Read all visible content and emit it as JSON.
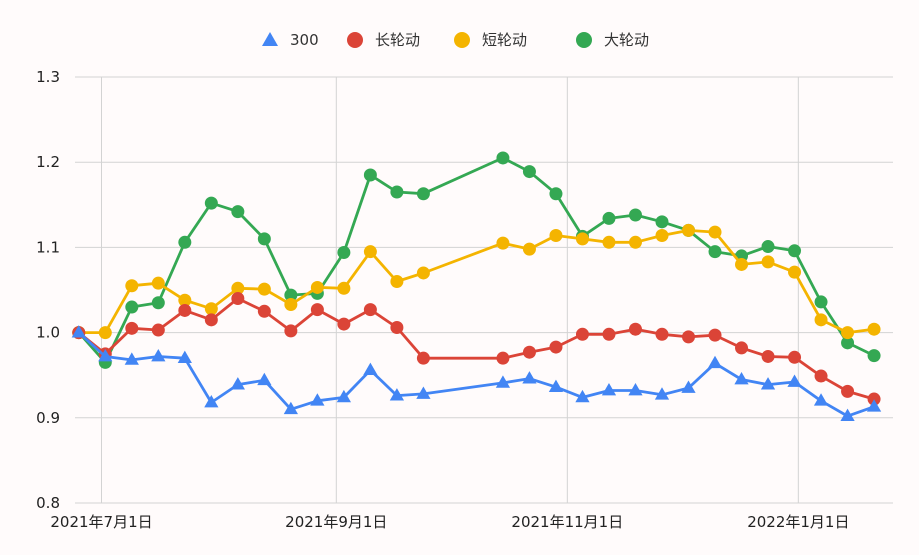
{
  "chart_data": {
    "type": "line",
    "title": "",
    "xlabel": "",
    "ylabel": "",
    "ylim": [
      0.8,
      1.3
    ],
    "y_ticks": [
      "0.8",
      "0.9",
      "1.0",
      "1.1",
      "1.2",
      "1.3"
    ],
    "x_range": [
      "2021-06-24",
      "2022-01-26"
    ],
    "x_ticks": [
      {
        "date": "2021-07-01",
        "label": "2021年7月1日"
      },
      {
        "date": "2021-09-01",
        "label": "2021年9月1日"
      },
      {
        "date": "2021-11-01",
        "label": "2021年11月1日"
      },
      {
        "date": "2022-01-01",
        "label": "2022年1月1日"
      }
    ],
    "grid": true,
    "legend_position": "top",
    "x": [
      "2021-06-25",
      "2021-07-02",
      "2021-07-09",
      "2021-07-16",
      "2021-07-23",
      "2021-07-30",
      "2021-08-06",
      "2021-08-13",
      "2021-08-20",
      "2021-08-27",
      "2021-09-03",
      "2021-09-10",
      "2021-09-17",
      "2021-09-24",
      "2021-10-15",
      "2021-10-22",
      "2021-10-29",
      "2021-11-05",
      "2021-11-12",
      "2021-11-19",
      "2021-11-26",
      "2021-12-03",
      "2021-12-10",
      "2021-12-17",
      "2021-12-24",
      "2021-12-31",
      "2022-01-07",
      "2022-01-14",
      "2022-01-21"
    ],
    "series": [
      {
        "name": "300",
        "color": "#4285f4",
        "marker": "triangle",
        "values": [
          1.0,
          0.972,
          0.968,
          0.972,
          0.97,
          0.918,
          0.939,
          0.944,
          0.91,
          0.92,
          0.924,
          0.956,
          0.926,
          0.928,
          0.941,
          0.946,
          0.936,
          0.924,
          0.932,
          0.932,
          0.927,
          0.935,
          0.964,
          0.945,
          0.939,
          0.942,
          0.92,
          0.902,
          0.913
        ]
      },
      {
        "name": "长轮动",
        "color": "#db4437",
        "marker": "circle",
        "values": [
          1.0,
          0.975,
          1.005,
          1.003,
          1.026,
          1.015,
          1.04,
          1.025,
          1.002,
          1.027,
          1.01,
          1.027,
          1.006,
          0.97,
          0.97,
          0.977,
          0.983,
          0.998,
          0.998,
          1.004,
          0.998,
          0.995,
          0.997,
          0.982,
          0.972,
          0.971,
          0.949,
          0.931,
          0.922
        ]
      },
      {
        "name": "短轮动",
        "color": "#f4b400",
        "marker": "circle",
        "values": [
          1.0,
          1.0,
          1.055,
          1.058,
          1.038,
          1.028,
          1.052,
          1.051,
          1.033,
          1.053,
          1.052,
          1.095,
          1.06,
          1.07,
          1.105,
          1.098,
          1.114,
          1.11,
          1.106,
          1.106,
          1.114,
          1.12,
          1.118,
          1.08,
          1.083,
          1.071,
          1.015,
          1.0,
          1.004
        ]
      },
      {
        "name": "大轮动",
        "color": "#34a853",
        "marker": "circle",
        "values": [
          1.0,
          0.965,
          1.03,
          1.035,
          1.106,
          1.152,
          1.142,
          1.11,
          1.044,
          1.046,
          1.094,
          1.185,
          1.165,
          1.163,
          1.205,
          1.189,
          1.163,
          1.113,
          1.134,
          1.138,
          1.13,
          1.12,
          1.095,
          1.09,
          1.101,
          1.096,
          1.036,
          0.988,
          0.973
        ]
      }
    ]
  }
}
